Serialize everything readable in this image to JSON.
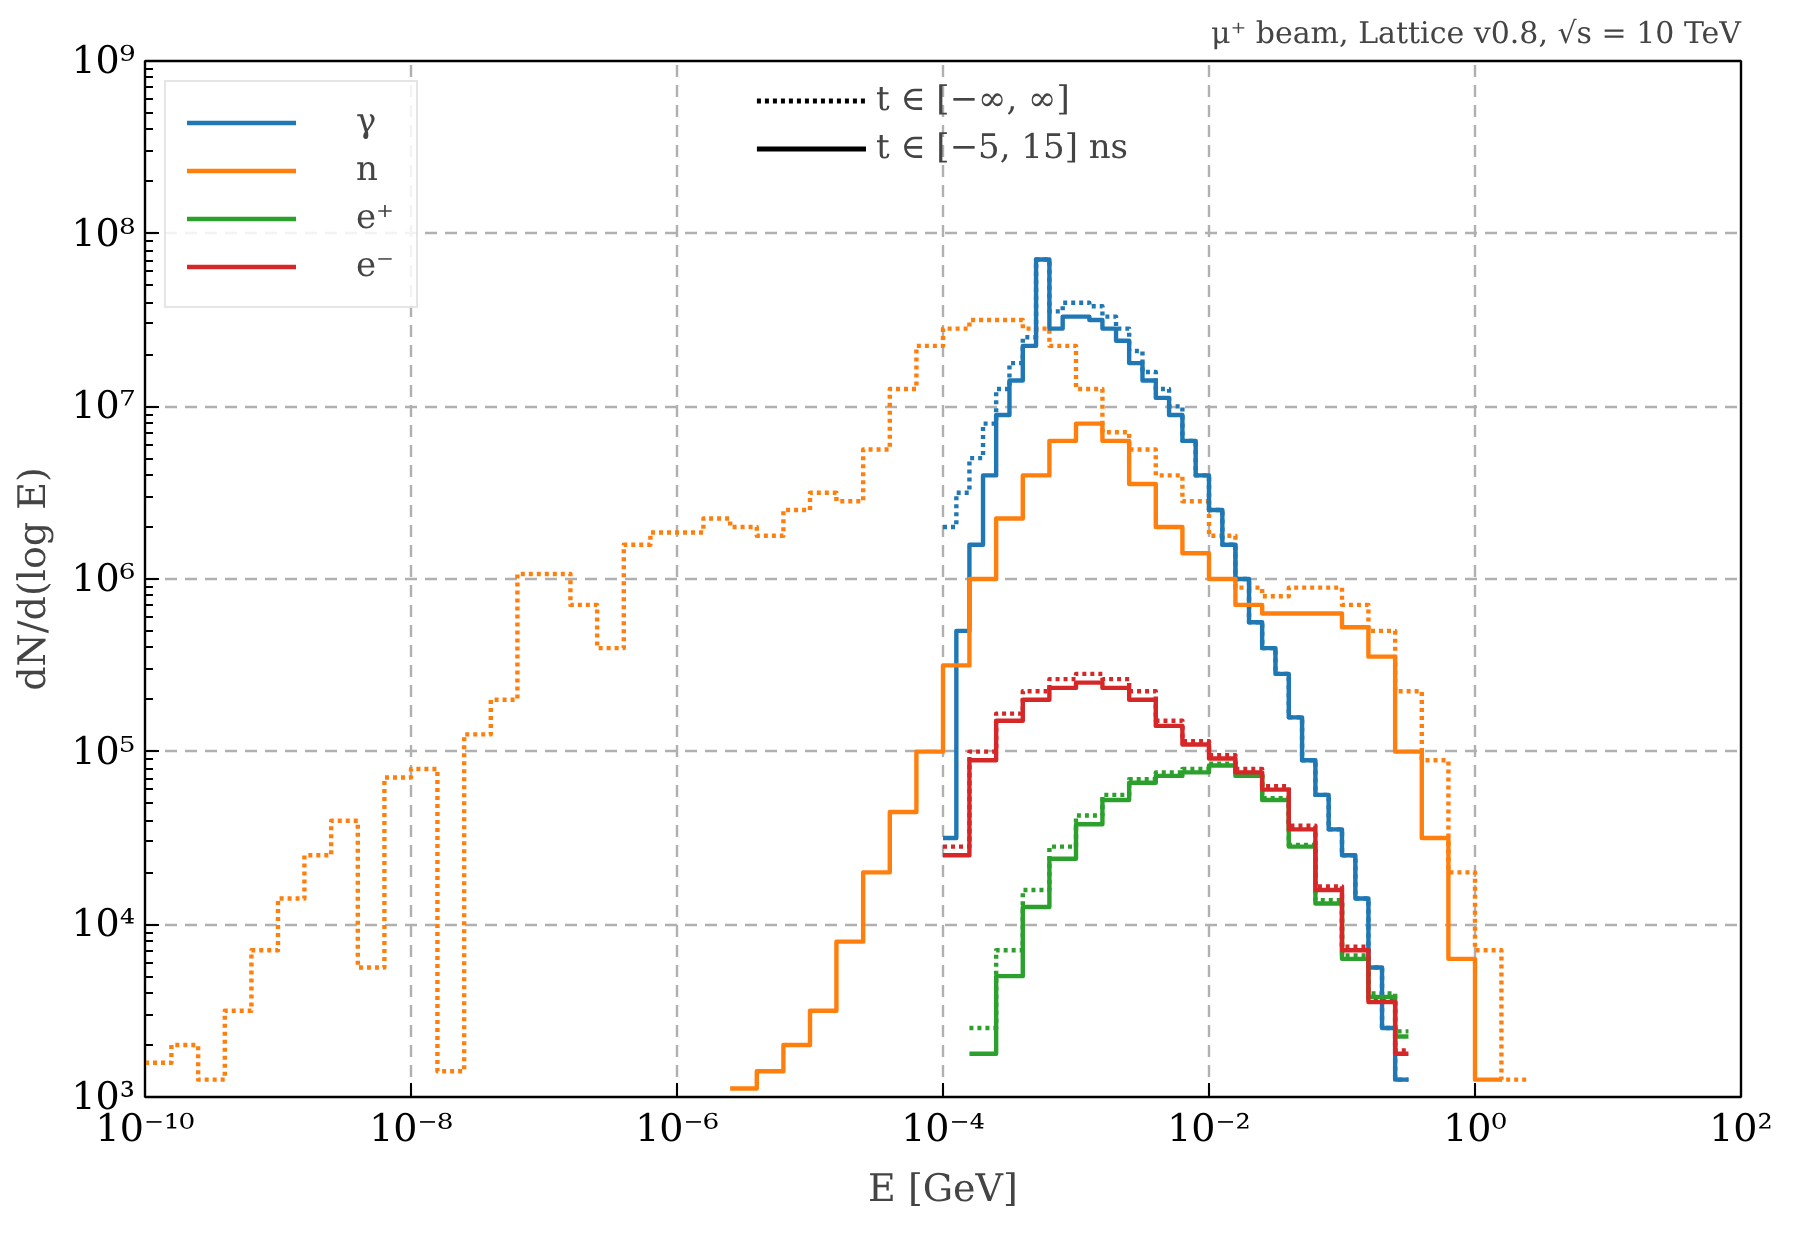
{
  "chart_data": {
    "type": "step",
    "title": "μ⁺ beam, Lattice v0.8, √s = 10 TeV",
    "xlabel": "E [GeV]",
    "ylabel": "dN/d(log E)",
    "xlim": [
      1e-10,
      100
    ],
    "ylim": [
      1000,
      1000000000.0
    ],
    "log": "xy",
    "grid": true,
    "legend": "top left",
    "xticks": [
      {
        "value": 1e-10,
        "label": "10⁻¹⁰"
      },
      {
        "value": 1e-08,
        "label": "10⁻⁸"
      },
      {
        "value": 1e-06,
        "label": "10⁻⁶"
      },
      {
        "value": 0.0001,
        "label": "10⁻⁴"
      },
      {
        "value": 0.01,
        "label": "10⁻²"
      },
      {
        "value": 1,
        "label": "10⁰"
      },
      {
        "value": 100,
        "label": "10²"
      }
    ],
    "yticks": [
      {
        "value": 1000,
        "label": "10³"
      },
      {
        "value": 10000,
        "label": "10⁴"
      },
      {
        "value": 100000,
        "label": "10⁵"
      },
      {
        "value": 1000000,
        "label": "10⁶"
      },
      {
        "value": 10000000,
        "label": "10⁷"
      },
      {
        "value": 100000000,
        "label": "10⁸"
      },
      {
        "value": 1000000000,
        "label": "10⁹"
      }
    ],
    "annotations": [
      "t ∈ [−∞, ∞]",
      "t ∈ [−5, 15] ns"
    ],
    "series": [
      {
        "color": "#ff7f0e",
        "line_style": "dotted",
        "x": [
          1e-10,
          1.58e-10,
          2.51e-10,
          3.98e-10,
          6.31e-10,
          1e-09,
          1.58e-09,
          2.51e-09,
          3.98e-09,
          6.31e-09,
          1e-08,
          1.58e-08,
          2.51e-08,
          3.98e-08,
          6.31e-08,
          1e-07,
          1.58e-07,
          2.51e-07,
          3.98e-07,
          6.31e-07,
          1e-06,
          1.58e-06,
          2.51e-06,
          3.98e-06,
          6.31e-06,
          1e-05,
          1.58e-05,
          2.51e-05,
          3.98e-05,
          6.31e-05,
          0.0001,
          0.000158,
          0.000251,
          0.000398,
          0.000631,
          0.001,
          0.00158,
          0.00251,
          0.00398,
          0.00631,
          0.01,
          0.0158,
          0.0251,
          0.0398,
          0.0631,
          0.1,
          0.158,
          0.251,
          0.398,
          0.631,
          1,
          1.58,
          2.51
        ],
        "values": [
          1580,
          2000,
          1260,
          3160,
          7080,
          14100,
          25100,
          39800,
          5620,
          70800,
          79400,
          1410,
          126000,
          200000,
          1070000,
          1070000,
          708000,
          398000,
          1580000,
          1860000,
          1860000,
          2240000,
          2000000,
          1780000,
          2510000,
          3160000,
          2820000,
          5620000,
          12600000,
          22400000,
          28200000,
          31600000,
          31600000,
          28200000,
          22400000,
          12600000,
          7080000,
          5620000,
          3980000,
          2820000,
          1780000,
          891000,
          794000,
          891000,
          891000,
          708000,
          501000,
          224000,
          89100,
          20000,
          7080,
          1260,
          1260
        ]
      },
      {
        "color": "#1f77b4",
        "line_style": "dotted",
        "x": [
          0.0001,
          0.000126,
          0.000158,
          0.0002,
          0.000251,
          0.000316,
          0.000398,
          0.000501,
          0.000631,
          0.000794,
          0.001,
          0.00126,
          0.00158,
          0.002,
          0.00251,
          0.00316,
          0.00398,
          0.00501,
          0.00631,
          0.00794,
          0.01,
          0.0126,
          0.0158,
          0.02,
          0.0251,
          0.0316,
          0.0398,
          0.0501,
          0.0631,
          0.0794,
          0.1,
          0.126,
          0.158,
          0.2,
          0.251,
          0.316
        ],
        "values": [
          2000000,
          3160000,
          5010000,
          7940000,
          12600000,
          17800000,
          25100000,
          70800000,
          35500000,
          39800000,
          39800000,
          38000000,
          33100000,
          28200000,
          20900000,
          15800000,
          12600000,
          10000000,
          6310000,
          3980000,
          2510000,
          1580000,
          1000000,
          562000,
          398000,
          282000,
          158000,
          89100,
          56200,
          35500,
          25100,
          14100,
          5620,
          2510,
          1260,
          1260
        ]
      },
      {
        "color": "#2ca02c",
        "line_style": "dotted",
        "x": [
          0.000158,
          0.000251,
          0.000398,
          0.000631,
          0.001,
          0.00158,
          0.00251,
          0.00398,
          0.00631,
          0.01,
          0.0158,
          0.0251,
          0.0398,
          0.0631,
          0.1,
          0.158,
          0.251,
          0.316
        ],
        "values": [
          2510,
          7080,
          15800,
          28200,
          42700,
          56200,
          69200,
          75900,
          79400,
          85100,
          74100,
          53700,
          28800,
          13800,
          6610,
          3980,
          2400,
          2400
        ]
      },
      {
        "color": "#d62728",
        "line_style": "dotted",
        "x": [
          0.0001,
          0.000158,
          0.000251,
          0.000398,
          0.000631,
          0.001,
          0.00158,
          0.00251,
          0.00398,
          0.00631,
          0.01,
          0.0158,
          0.0251,
          0.0398,
          0.0631,
          0.1,
          0.158,
          0.251,
          0.316
        ],
        "values": [
          28200,
          100000,
          166000,
          224000,
          263000,
          282000,
          263000,
          224000,
          151000,
          115000,
          95500,
          79400,
          63100,
          37200,
          16600,
          7410,
          3720,
          1860,
          1860
        ]
      },
      {
        "name": "γ",
        "color": "#1f77b4",
        "line_style": "solid",
        "x": [
          0.0001,
          0.000126,
          0.000158,
          0.0002,
          0.000251,
          0.000316,
          0.000398,
          0.000501,
          0.000631,
          0.000794,
          0.001,
          0.00126,
          0.00158,
          0.002,
          0.00251,
          0.00316,
          0.00398,
          0.00501,
          0.00631,
          0.00794,
          0.01,
          0.0126,
          0.0158,
          0.02,
          0.0251,
          0.0316,
          0.0398,
          0.0501,
          0.0631,
          0.0794,
          0.1,
          0.126,
          0.158,
          0.2,
          0.251,
          0.316
        ],
        "values": [
          31600,
          501000,
          1580000,
          3980000,
          8910000,
          14100000,
          22400000,
          70800000,
          28200000,
          33100000,
          33100000,
          31600000,
          28200000,
          24000000,
          17800000,
          14100000,
          11200000,
          8910000,
          6310000,
          3980000,
          2510000,
          1580000,
          1000000,
          562000,
          398000,
          282000,
          158000,
          89100,
          56200,
          35500,
          25100,
          14100,
          5620,
          2510,
          1260,
          1260
        ]
      },
      {
        "name": "n",
        "color": "#ff7f0e",
        "line_style": "solid",
        "x": [
          2.51e-06,
          3.98e-06,
          6.31e-06,
          1e-05,
          1.58e-05,
          2.51e-05,
          3.98e-05,
          6.31e-05,
          0.0001,
          0.000158,
          0.000251,
          0.000398,
          0.000631,
          0.001,
          0.00158,
          0.00251,
          0.00398,
          0.00631,
          0.01,
          0.0158,
          0.0251,
          0.0398,
          0.0631,
          0.1,
          0.158,
          0.251,
          0.398,
          0.631,
          1,
          1.58
        ],
        "values": [
          1120,
          1410,
          2000,
          3160,
          7940,
          20000,
          44700,
          100000,
          316000,
          1000000,
          2240000,
          3980000,
          6310000,
          7940000,
          6310000,
          3550000,
          2000000,
          1410000,
          1000000,
          708000,
          631000,
          631000,
          631000,
          525000,
          355000,
          100000,
          31600,
          6310,
          1260,
          1260
        ]
      },
      {
        "name": "e⁺",
        "color": "#2ca02c",
        "line_style": "solid",
        "x": [
          0.000158,
          0.000251,
          0.000398,
          0.000631,
          0.001,
          0.00158,
          0.00251,
          0.00398,
          0.00631,
          0.01,
          0.0158,
          0.0251,
          0.0398,
          0.0631,
          0.1,
          0.158,
          0.251,
          0.316
        ],
        "values": [
          1780,
          5010,
          12600,
          24000,
          38000,
          52500,
          66100,
          72400,
          75900,
          83200,
          72400,
          52500,
          28200,
          13200,
          6310,
          3800,
          2240,
          2240
        ]
      },
      {
        "name": "e⁻",
        "color": "#d62728",
        "line_style": "solid",
        "x": [
          0.0001,
          0.000158,
          0.000251,
          0.000398,
          0.000631,
          0.001,
          0.00158,
          0.00251,
          0.00398,
          0.00631,
          0.01,
          0.0158,
          0.0251,
          0.0398,
          0.0631,
          0.1,
          0.158,
          0.251,
          0.316
        ],
        "values": [
          25100,
          89100,
          151000,
          200000,
          234000,
          251000,
          234000,
          200000,
          141000,
          110000,
          91200,
          75900,
          60300,
          35500,
          15800,
          7080,
          3550,
          1780,
          1780
        ]
      }
    ]
  }
}
